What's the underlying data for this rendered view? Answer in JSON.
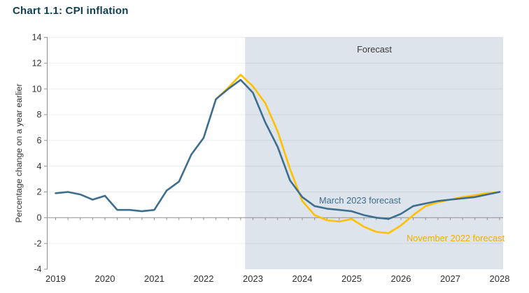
{
  "page": {
    "title": "Chart 1.1: CPI inflation"
  },
  "chart_data": {
    "type": "line",
    "title": "Chart 1.1: CPI inflation",
    "ylabel": "Percentage change on a year earlier",
    "xlabel": "",
    "ylim": [
      -4,
      14
    ],
    "xlim": [
      2018.82,
      2028.07
    ],
    "y_ticks": [
      14,
      12,
      10,
      8,
      6,
      4,
      2,
      0,
      -2,
      -4
    ],
    "x_tick_years": [
      2019,
      2020,
      2021,
      2022,
      2023,
      2024,
      2025,
      2026,
      2027,
      2028
    ],
    "x_minor_tick_step": 0.25,
    "grid": "horizontal-light",
    "legend_position": "inline-annotations",
    "forecast_region": {
      "label": "Forecast",
      "start": 2022.84,
      "end": 2028.07,
      "fill": "#DDE4EC"
    },
    "series": [
      {
        "name": "November 2022 forecast",
        "color": "#FFC000",
        "x_start": 2022.25,
        "x_step": 0.25,
        "values": [
          9.2,
          10.1,
          11.1,
          10.2,
          8.9,
          6.7,
          3.8,
          1.3,
          0.2,
          -0.2,
          -0.3,
          -0.1,
          -0.7,
          -1.1,
          -1.2,
          -0.6,
          0.2,
          0.9,
          1.2,
          1.4,
          1.6,
          1.75,
          1.9,
          2.0
        ]
      },
      {
        "name": "March 2023 forecast",
        "color": "#3E6E8E",
        "x_start": 2019.0,
        "x_step": 0.25,
        "values": [
          1.9,
          2.0,
          1.8,
          1.4,
          1.7,
          0.6,
          0.6,
          0.5,
          0.6,
          2.1,
          2.8,
          4.9,
          6.2,
          9.2,
          10.0,
          10.7,
          9.7,
          7.4,
          5.5,
          2.9,
          1.6,
          0.9,
          0.7,
          0.6,
          0.5,
          0.2,
          0.0,
          -0.1,
          0.3,
          0.9,
          1.1,
          1.3,
          1.4,
          1.5,
          1.6,
          1.8,
          2.0
        ]
      }
    ],
    "annotations": [
      {
        "text": "Forecast",
        "color": "#3A3A3A"
      },
      {
        "text": "March 2023 forecast",
        "color": "#3E6E8E"
      },
      {
        "text": "November 2022 forecast",
        "color": "#F1AD00"
      }
    ],
    "axis_text_color": "#333333",
    "axis_line_color": "#8F8F8F",
    "title_color": "#0E3E52"
  }
}
